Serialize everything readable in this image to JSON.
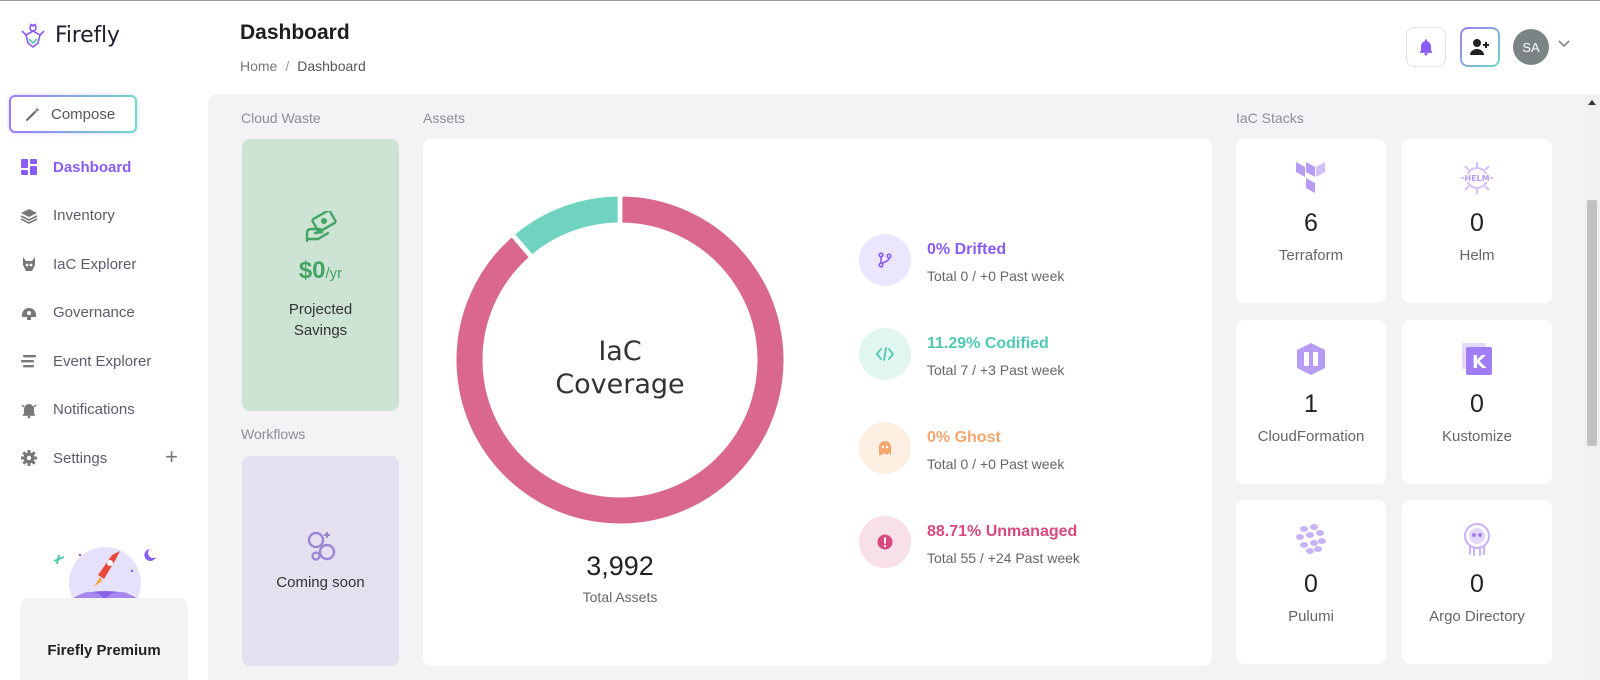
{
  "app": {
    "name": "Firefly"
  },
  "sidebar": {
    "compose_label": "Compose",
    "items": [
      {
        "label": "Dashboard",
        "icon": "dashboard-icon",
        "active": true
      },
      {
        "label": "Inventory",
        "icon": "layers-icon"
      },
      {
        "label": "IaC Explorer",
        "icon": "iac-explorer-icon"
      },
      {
        "label": "Governance",
        "icon": "governance-icon"
      },
      {
        "label": "Event Explorer",
        "icon": "event-list-icon"
      },
      {
        "label": "Notifications",
        "icon": "bell-icon"
      },
      {
        "label": "Settings",
        "icon": "gear-icon"
      }
    ],
    "premium_label": "Firefly Premium"
  },
  "header": {
    "title": "Dashboard",
    "breadcrumb": [
      "Home",
      "/",
      "Dashboard"
    ],
    "avatar_initials": "SA"
  },
  "cloud_waste": {
    "section_label": "Cloud Waste",
    "amount": "$0",
    "unit": "/yr",
    "label_line1": "Projected",
    "label_line2": "Savings"
  },
  "workflows": {
    "section_label": "Workflows",
    "text": "Coming soon"
  },
  "assets": {
    "section_label": "Assets",
    "donut_title_line1": "IaC",
    "donut_title_line2": "Coverage",
    "total": "3,992",
    "total_label": "Total Assets",
    "metrics": [
      {
        "title": "0% Drifted",
        "sub": "Total 0 / +0 Past week",
        "color": "#8a5cf6",
        "bg": "#ebe5fd",
        "icon": "branch-icon"
      },
      {
        "title": "11.29% Codified",
        "sub": "Total 7 / +3 Past week",
        "color": "#4fc9b3",
        "bg": "#e2f6f1",
        "icon": "code-icon"
      },
      {
        "title": "0% Ghost",
        "sub": "Total 0 / +0 Past week",
        "color": "#f4a66b",
        "bg": "#fdeee2",
        "icon": "ghost-icon"
      },
      {
        "title": "88.71% Unmanaged",
        "sub": "Total 55 / +24 Past week",
        "color": "#d9497b",
        "bg": "#f8e0e8",
        "icon": "alert-icon"
      }
    ]
  },
  "chart_data": {
    "type": "pie",
    "categories": [
      "Unmanaged",
      "Codified",
      "Drifted",
      "Ghost"
    ],
    "values": [
      88.71,
      11.29,
      0,
      0
    ],
    "colors": [
      "#d9688c",
      "#6fd3c0",
      "#8a5cf6",
      "#f4a66b"
    ]
  },
  "iac_stacks": {
    "section_label": "IaC Stacks",
    "items": [
      {
        "name": "Terraform",
        "count": "6",
        "icon": "terraform-icon"
      },
      {
        "name": "Helm",
        "count": "0",
        "icon": "helm-icon"
      },
      {
        "name": "CloudFormation",
        "count": "1",
        "icon": "cloudformation-icon"
      },
      {
        "name": "Kustomize",
        "count": "0",
        "icon": "kustomize-icon"
      },
      {
        "name": "Pulumi",
        "count": "0",
        "icon": "pulumi-icon"
      },
      {
        "name": "Argo Directory",
        "count": "0",
        "icon": "argo-icon"
      }
    ]
  }
}
